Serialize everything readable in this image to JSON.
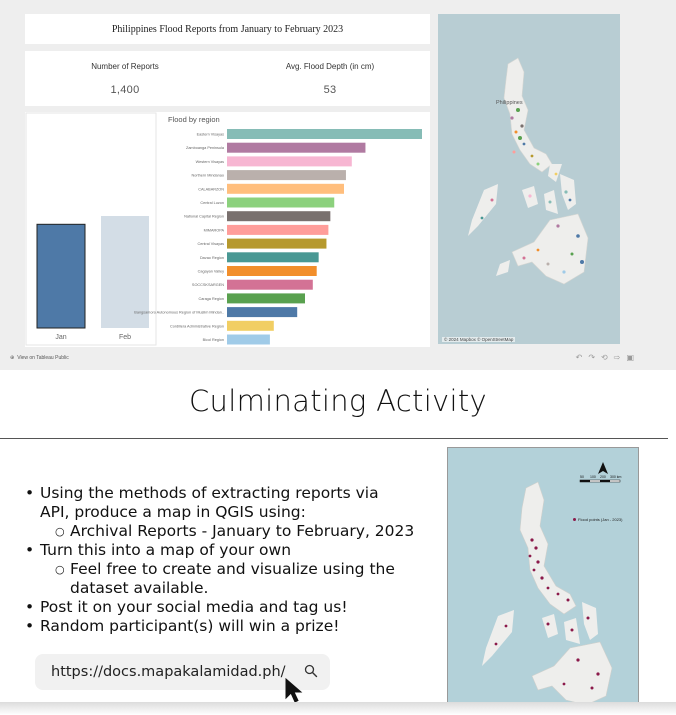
{
  "dashboard": {
    "title": "Philippines Flood Reports from January to February 2023",
    "kpis": [
      {
        "label": "Number of Reports",
        "value": "1,400"
      },
      {
        "label": "Avg. Flood Depth (in cm)",
        "value": "53"
      }
    ],
    "footer_link": "View on Tableau Public",
    "map_attribution": "© 2024 Mapbox  © OpenStreetMap",
    "map_country_label": "Philippines"
  },
  "chart_data": [
    {
      "type": "bar",
      "categories": [
        "Jan",
        "Feb"
      ],
      "values": [
        1,
        1.08
      ],
      "colors": [
        "#4e79a7",
        "#d3dde6"
      ]
    },
    {
      "type": "bar",
      "title": "Flood by region",
      "orientation": "horizontal",
      "categories": [
        "Eastern Visayas",
        "Zamboanga Peninsula",
        "Western Visayas",
        "Northern Mindanao",
        "CALABARZON",
        "Central Luzon",
        "National Capital Region",
        "MIMAROPA",
        "Central Visayas",
        "Davao Region",
        "Cagayan Valley",
        "SOCCSKSARGEN",
        "Caraga Region",
        "Bangsamoro Autonomous Region of Muslim Mindan..",
        "Cordillera Administrative Region",
        "Bicol Region"
      ],
      "values": [
        100,
        71,
        64,
        61,
        60,
        55,
        53,
        52,
        51,
        47,
        46,
        44,
        40,
        36,
        24,
        22
      ],
      "colors": [
        "#86bcb6",
        "#b07aa1",
        "#f7b6d2",
        "#bab0ac",
        "#ffbe7d",
        "#8cd17d",
        "#79706e",
        "#ff9d9a",
        "#b6992d",
        "#499894",
        "#f28e2b",
        "#d37295",
        "#59a14f",
        "#4e79a7",
        "#f1ce63",
        "#a0cbe8"
      ]
    }
  ],
  "slide": {
    "heading": "Culminating Activity",
    "bullets": [
      {
        "level": 1,
        "text": "Using the methods of extracting reports via"
      },
      {
        "level": 1.5,
        "text": "API, produce a map in QGIS using:"
      },
      {
        "level": 2,
        "text": "Archival Reports - January to February, 2023"
      },
      {
        "level": 1,
        "text": "Turn this into a map of your own"
      },
      {
        "level": 2,
        "text": "Feel free to create and visualize using the"
      },
      {
        "level": 2.5,
        "text": "dataset available."
      },
      {
        "level": 1,
        "text": "Post it on your social media and tag us!"
      },
      {
        "level": 1,
        "text": "Random participant(s) will win a prize!"
      }
    ],
    "search_url": "https://docs.mapakalamidad.ph/",
    "qgis_legend": "Flood points (Jan - 2023)",
    "qgis_scale": [
      "50",
      "100",
      "200",
      "300 km"
    ]
  },
  "colors": {
    "accent": "#4e79a7",
    "map_sea": "#b8cdd3",
    "land": "#eeeeec"
  }
}
